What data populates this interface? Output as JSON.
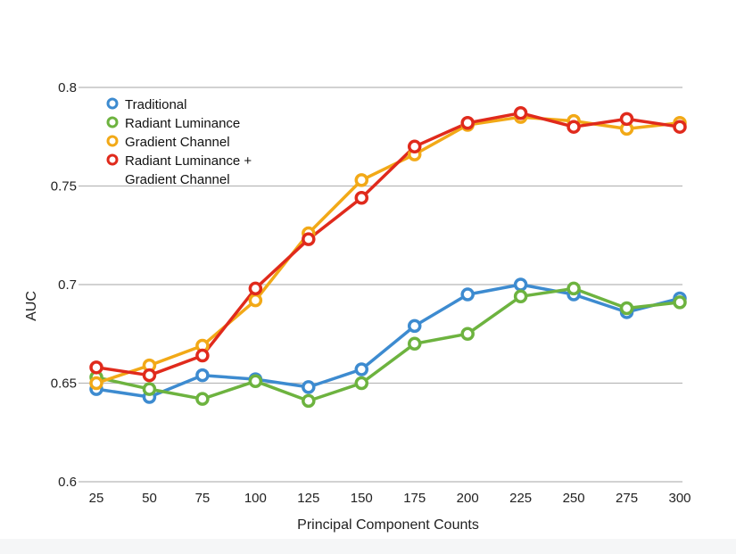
{
  "chart_data": {
    "type": "line",
    "title": "",
    "xlabel": "Principal Component Counts",
    "ylabel": "AUC",
    "x": [
      25,
      50,
      75,
      100,
      125,
      150,
      175,
      200,
      225,
      250,
      275,
      300
    ],
    "x_tick_labels": [
      "25",
      "50",
      "75",
      "100",
      "125",
      "150",
      "175",
      "200",
      "225",
      "250",
      "275",
      "300"
    ],
    "y_tick_labels": [
      "0.6",
      "0.65",
      "0.7",
      "0.75",
      "0.8"
    ],
    "y_ticks": [
      0.6,
      0.65,
      0.7,
      0.75,
      0.8
    ],
    "ylim": [
      0.6,
      0.8
    ],
    "grid": "horizontal",
    "legend_position": "top-left",
    "series": [
      {
        "name": "Traditional",
        "color": "#3d8bd0",
        "values": [
          0.647,
          0.643,
          0.654,
          0.652,
          0.648,
          0.657,
          0.679,
          0.695,
          0.7,
          0.695,
          0.686,
          0.693
        ]
      },
      {
        "name": "Radiant Luminance",
        "color": "#6db33f",
        "values": [
          0.653,
          0.647,
          0.642,
          0.651,
          0.641,
          0.65,
          0.67,
          0.675,
          0.694,
          0.698,
          0.688,
          0.691
        ]
      },
      {
        "name": "Gradient Channel",
        "color": "#f2a917",
        "values": [
          0.65,
          0.659,
          0.669,
          0.692,
          0.726,
          0.753,
          0.766,
          0.781,
          0.785,
          0.783,
          0.779,
          0.782
        ]
      },
      {
        "name": "Radiant Luminance + Gradient Channel",
        "legend_lines": [
          "Radiant Luminance +",
          "Gradient Channel"
        ],
        "color": "#e02a1c",
        "values": [
          0.658,
          0.654,
          0.664,
          0.698,
          0.723,
          0.744,
          0.77,
          0.782,
          0.787,
          0.78,
          0.784,
          0.78
        ]
      }
    ]
  }
}
